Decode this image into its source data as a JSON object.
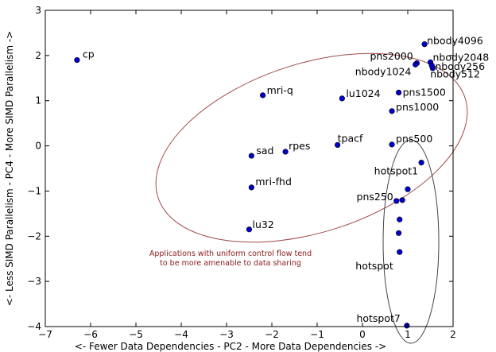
{
  "chart_data": {
    "type": "scatter",
    "title": "",
    "xlabel": "<- Fewer Data Dependencies - PC2 - More Data Dependencies ->",
    "ylabel": "<- Less SIMD Parallelism - PC4 - More SIMD Parallelism ->",
    "xlim": [
      -7,
      2
    ],
    "ylim": [
      -4,
      3
    ],
    "xticks": [
      -7,
      -6,
      -5,
      -4,
      -3,
      -2,
      -1,
      0,
      1,
      2
    ],
    "yticks": [
      -4,
      -3,
      -2,
      -1,
      0,
      1,
      2,
      3
    ],
    "grid": false,
    "marker_color": "#0000cc",
    "ellipse_colors": {
      "main": "#a04a4a",
      "hotspot": "#444444"
    },
    "annotation": {
      "lines": [
        "Applications with uniform control flow tend",
        "to be more amenable to data sharing"
      ],
      "color": "#8b1a1a"
    },
    "points": [
      {
        "label": "cp",
        "x": -6.3,
        "y": 1.9
      },
      {
        "label": "nbody4096",
        "x": 1.37,
        "y": 2.25
      },
      {
        "label": "nbody2048",
        "x": 1.5,
        "y": 1.85
      },
      {
        "label": "nbody256",
        "x": 1.55,
        "y": 1.72
      },
      {
        "label": "nbody512",
        "x": 1.53,
        "y": 1.78
      },
      {
        "label": "nbody1024",
        "x": 1.2,
        "y": 1.83
      },
      {
        "label": "pns2000",
        "x": 1.17,
        "y": 1.8
      },
      {
        "label": "mri-q",
        "x": -2.2,
        "y": 1.12
      },
      {
        "label": "lu1024",
        "x": -0.45,
        "y": 1.05
      },
      {
        "label": "pns1500",
        "x": 0.8,
        "y": 1.18
      },
      {
        "label": "pns1000",
        "x": 0.65,
        "y": 0.77
      },
      {
        "label": "tpacf",
        "x": -0.55,
        "y": 0.02
      },
      {
        "label": "rpes",
        "x": -1.7,
        "y": -0.13
      },
      {
        "label": "sad",
        "x": -2.45,
        "y": -0.22
      },
      {
        "label": "pns500",
        "x": 0.65,
        "y": 0.03
      },
      {
        "label": "hotspot1",
        "x": 1.3,
        "y": -0.37
      },
      {
        "label": "mri-fhd",
        "x": -2.45,
        "y": -0.92
      },
      {
        "label": "",
        "x": 1.0,
        "y": -0.96
      },
      {
        "label": "pns250",
        "x": 0.75,
        "y": -1.22
      },
      {
        "label": "",
        "x": 0.88,
        "y": -1.2
      },
      {
        "label": "lu32",
        "x": -2.5,
        "y": -1.85
      },
      {
        "label": "",
        "x": 0.82,
        "y": -1.63
      },
      {
        "label": "",
        "x": 0.8,
        "y": -1.93
      },
      {
        "label": "hotspot",
        "x": 0.82,
        "y": -2.35
      },
      {
        "label": "hotspot7",
        "x": 0.98,
        "y": -3.98
      }
    ]
  }
}
